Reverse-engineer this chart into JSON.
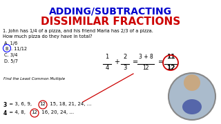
{
  "title_line1": "ADDING/SUBTRACTING",
  "title_line2": "DISSIMILAR FRACTIONS",
  "title_color1": "#0000CC",
  "title_color2": "#CC0000",
  "bg_color": "#f0f0f0",
  "q_line1": "1. John has 1/4 of a pizza, and his friend Maria has 2/3 of a pizza.",
  "q_line2": "How much pizza do they have in total?",
  "choices": [
    "A. 1/6",
    "B. 11/12",
    "C. 3/4",
    "D. 5/7"
  ],
  "lcm_label": "Find the Least Common Multiple",
  "mult3_before": "3 = 3, 6, 9, ",
  "mult3_circ": "12",
  "mult3_after": " 15, 18, 21, 24, ...",
  "mult4_before": "4 = 4, 8, ",
  "mult4_circ": "12",
  "mult4_after": " 16, 20, 24, ...",
  "person_color": "#8899aa"
}
